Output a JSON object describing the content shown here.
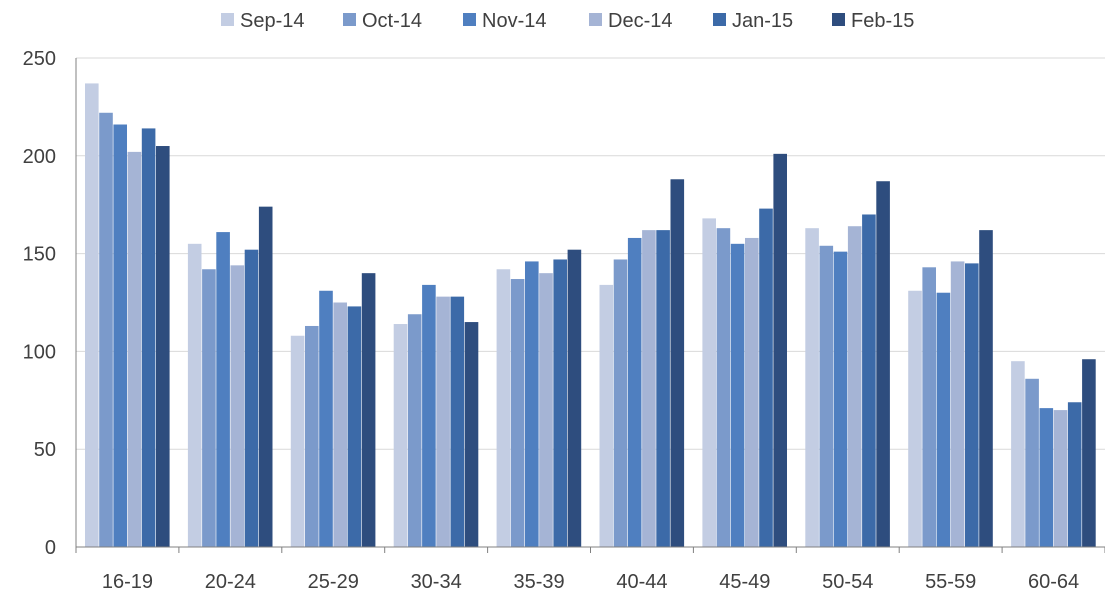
{
  "chart_data": {
    "type": "bar",
    "categories": [
      "16-19",
      "20-24",
      "25-29",
      "30-34",
      "35-39",
      "40-44",
      "45-49",
      "50-54",
      "55-59",
      "60-64"
    ],
    "series": [
      {
        "name": "Sep-14",
        "color": "#c3cde3",
        "values": [
          237,
          155,
          108,
          114,
          142,
          134,
          168,
          163,
          131,
          95
        ]
      },
      {
        "name": "Oct-14",
        "color": "#7b9acb",
        "values": [
          222,
          142,
          113,
          119,
          137,
          147,
          163,
          154,
          143,
          86
        ]
      },
      {
        "name": "Nov-14",
        "color": "#4f7fc0",
        "values": [
          216,
          161,
          131,
          134,
          146,
          158,
          155,
          151,
          130,
          71
        ]
      },
      {
        "name": "Dec-14",
        "color": "#a5b4d5",
        "values": [
          202,
          144,
          125,
          128,
          140,
          162,
          158,
          164,
          146,
          70
        ]
      },
      {
        "name": "Jan-15",
        "color": "#3c6aa8",
        "values": [
          214,
          152,
          123,
          128,
          147,
          162,
          173,
          170,
          145,
          74
        ]
      },
      {
        "name": "Feb-15",
        "color": "#2e4d7e",
        "values": [
          205,
          174,
          140,
          115,
          152,
          188,
          201,
          187,
          162,
          96
        ]
      }
    ],
    "ylim": [
      0,
      250
    ],
    "yticks": [
      0,
      50,
      100,
      150,
      200,
      250
    ],
    "grid": true,
    "legend_position": "top",
    "title": "",
    "xlabel": "",
    "ylabel": ""
  }
}
